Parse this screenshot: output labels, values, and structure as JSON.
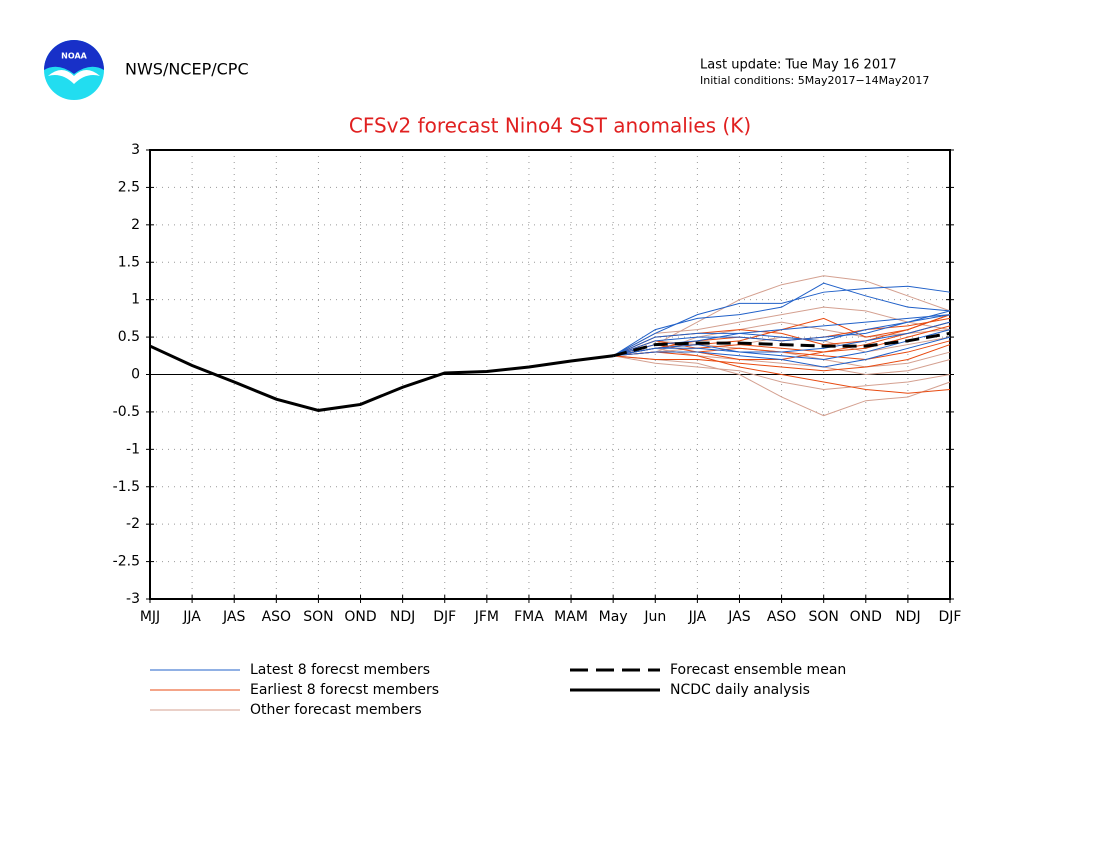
{
  "header": {
    "agency": "NWS/NCEP/CPC",
    "last_update": "Last update: Tue May 16 2017",
    "initial_conditions": "Initial conditions: 5May2017−14May2017",
    "logo_text": "NOAA"
  },
  "chart_data": {
    "type": "line",
    "title": "CFSv2 forecast Nino4 SST anomalies (K)",
    "categories": [
      "MJJ",
      "JJA",
      "JAS",
      "ASO",
      "SON",
      "OND",
      "NDJ",
      "DJF",
      "JFM",
      "FMA",
      "MAM",
      "May",
      "Jun",
      "JJA",
      "JAS",
      "ASO",
      "SON",
      "OND",
      "NDJ",
      "DJF"
    ],
    "ylim": [
      -3,
      3
    ],
    "yticks": [
      -3,
      -2.5,
      -2,
      -1.5,
      -1,
      -0.5,
      0,
      0.5,
      1,
      1.5,
      2,
      2.5,
      3
    ],
    "grid": true,
    "series": [
      {
        "name": "Latest 8 forecst members",
        "color": "#2060c8",
        "members": [
          [
            null,
            null,
            null,
            null,
            null,
            null,
            null,
            null,
            null,
            null,
            null,
            0.25,
            0.55,
            0.8,
            0.95,
            0.95,
            1.1,
            1.15,
            1.18,
            1.1
          ],
          [
            null,
            null,
            null,
            null,
            null,
            null,
            null,
            null,
            null,
            null,
            null,
            0.25,
            0.6,
            0.75,
            0.8,
            0.9,
            1.22,
            1.05,
            0.9,
            0.85
          ],
          [
            null,
            null,
            null,
            null,
            null,
            null,
            null,
            null,
            null,
            null,
            null,
            0.25,
            0.5,
            0.55,
            0.55,
            0.5,
            0.45,
            0.6,
            0.7,
            0.8
          ],
          [
            null,
            null,
            null,
            null,
            null,
            null,
            null,
            null,
            null,
            null,
            null,
            0.25,
            0.35,
            0.4,
            0.3,
            0.25,
            0.2,
            0.3,
            0.45,
            0.6
          ],
          [
            null,
            null,
            null,
            null,
            null,
            null,
            null,
            null,
            null,
            null,
            null,
            0.25,
            0.45,
            0.5,
            0.5,
            0.45,
            0.5,
            0.55,
            0.7,
            0.85
          ],
          [
            null,
            null,
            null,
            null,
            null,
            null,
            null,
            null,
            null,
            null,
            null,
            0.25,
            0.3,
            0.3,
            0.25,
            0.2,
            0.1,
            0.2,
            0.35,
            0.5
          ],
          [
            null,
            null,
            null,
            null,
            null,
            null,
            null,
            null,
            null,
            null,
            null,
            0.25,
            0.4,
            0.45,
            0.55,
            0.6,
            0.65,
            0.7,
            0.75,
            0.8
          ],
          [
            null,
            null,
            null,
            null,
            null,
            null,
            null,
            null,
            null,
            null,
            null,
            0.25,
            0.35,
            0.35,
            0.3,
            0.3,
            0.35,
            0.45,
            0.55,
            0.7
          ]
        ]
      },
      {
        "name": "Earliest 8 forecst members",
        "color": "#e84a10",
        "members": [
          [
            null,
            null,
            null,
            null,
            null,
            null,
            null,
            null,
            null,
            null,
            null,
            0.25,
            0.3,
            0.25,
            0.1,
            0.0,
            -0.1,
            -0.2,
            -0.25,
            -0.2
          ],
          [
            null,
            null,
            null,
            null,
            null,
            null,
            null,
            null,
            null,
            null,
            null,
            0.25,
            0.35,
            0.4,
            0.45,
            0.6,
            0.75,
            0.5,
            0.6,
            0.8
          ],
          [
            null,
            null,
            null,
            null,
            null,
            null,
            null,
            null,
            null,
            null,
            null,
            0.25,
            0.2,
            0.2,
            0.15,
            0.1,
            0.05,
            0.1,
            0.2,
            0.4
          ],
          [
            null,
            null,
            null,
            null,
            null,
            null,
            null,
            null,
            null,
            null,
            null,
            0.25,
            0.45,
            0.35,
            0.4,
            0.35,
            0.3,
            0.4,
            0.55,
            0.7
          ],
          [
            null,
            null,
            null,
            null,
            null,
            null,
            null,
            null,
            null,
            null,
            null,
            0.25,
            0.5,
            0.55,
            0.6,
            0.55,
            0.4,
            0.45,
            0.6,
            0.8
          ],
          [
            null,
            null,
            null,
            null,
            null,
            null,
            null,
            null,
            null,
            null,
            null,
            0.25,
            0.3,
            0.3,
            0.35,
            0.3,
            0.25,
            0.2,
            0.3,
            0.45
          ],
          [
            null,
            null,
            null,
            null,
            null,
            null,
            null,
            null,
            null,
            null,
            null,
            0.25,
            0.4,
            0.3,
            0.2,
            0.2,
            0.3,
            0.35,
            0.5,
            0.65
          ],
          [
            null,
            null,
            null,
            null,
            null,
            null,
            null,
            null,
            null,
            null,
            null,
            0.25,
            0.35,
            0.45,
            0.5,
            0.45,
            0.5,
            0.6,
            0.65,
            0.75
          ]
        ]
      },
      {
        "name": "Other forecast members",
        "color": "#d4a090",
        "members": [
          [
            null,
            null,
            null,
            null,
            null,
            null,
            null,
            null,
            null,
            null,
            null,
            0.25,
            0.4,
            0.7,
            1.0,
            1.2,
            1.32,
            1.25,
            1.05,
            0.85
          ],
          [
            null,
            null,
            null,
            null,
            null,
            null,
            null,
            null,
            null,
            null,
            null,
            0.25,
            0.2,
            0.15,
            0.0,
            -0.3,
            -0.55,
            -0.35,
            -0.3,
            -0.1
          ],
          [
            null,
            null,
            null,
            null,
            null,
            null,
            null,
            null,
            null,
            null,
            null,
            0.25,
            0.3,
            0.5,
            0.6,
            0.7,
            0.6,
            0.5,
            0.55,
            0.6
          ],
          [
            null,
            null,
            null,
            null,
            null,
            null,
            null,
            null,
            null,
            null,
            null,
            0.25,
            0.45,
            0.4,
            0.35,
            0.3,
            0.2,
            0.1,
            0.15,
            0.3
          ],
          [
            null,
            null,
            null,
            null,
            null,
            null,
            null,
            null,
            null,
            null,
            null,
            0.25,
            0.15,
            0.1,
            0.05,
            -0.1,
            -0.2,
            -0.15,
            -0.1,
            0
          ],
          [
            null,
            null,
            null,
            null,
            null,
            null,
            null,
            null,
            null,
            null,
            null,
            0.25,
            0.55,
            0.6,
            0.7,
            0.8,
            0.9,
            0.85,
            0.7,
            0.6
          ],
          [
            null,
            null,
            null,
            null,
            null,
            null,
            null,
            null,
            null,
            null,
            null,
            0.25,
            0.3,
            0.35,
            0.4,
            0.5,
            0.45,
            0.3,
            0.4,
            0.5
          ],
          [
            null,
            null,
            null,
            null,
            null,
            null,
            null,
            null,
            null,
            null,
            null,
            0.25,
            0.35,
            0.25,
            0.2,
            0.15,
            0.1,
            0.0,
            0.05,
            0.2
          ]
        ]
      },
      {
        "name": "Forecast ensemble mean",
        "color": "#000000",
        "line_style": "dashed",
        "values": [
          null,
          null,
          null,
          null,
          null,
          null,
          null,
          null,
          null,
          null,
          null,
          0.25,
          0.4,
          0.42,
          0.42,
          0.4,
          0.38,
          0.38,
          0.45,
          0.55
        ]
      },
      {
        "name": "NCDC daily analysis",
        "color": "#000000",
        "line_style": "solid",
        "values": [
          0.38,
          0.12,
          -0.1,
          -0.33,
          -0.48,
          -0.4,
          -0.17,
          0.02,
          0.04,
          0.1,
          0.18,
          0.25,
          null,
          null,
          null,
          null,
          null,
          null,
          null,
          null
        ]
      }
    ]
  }
}
